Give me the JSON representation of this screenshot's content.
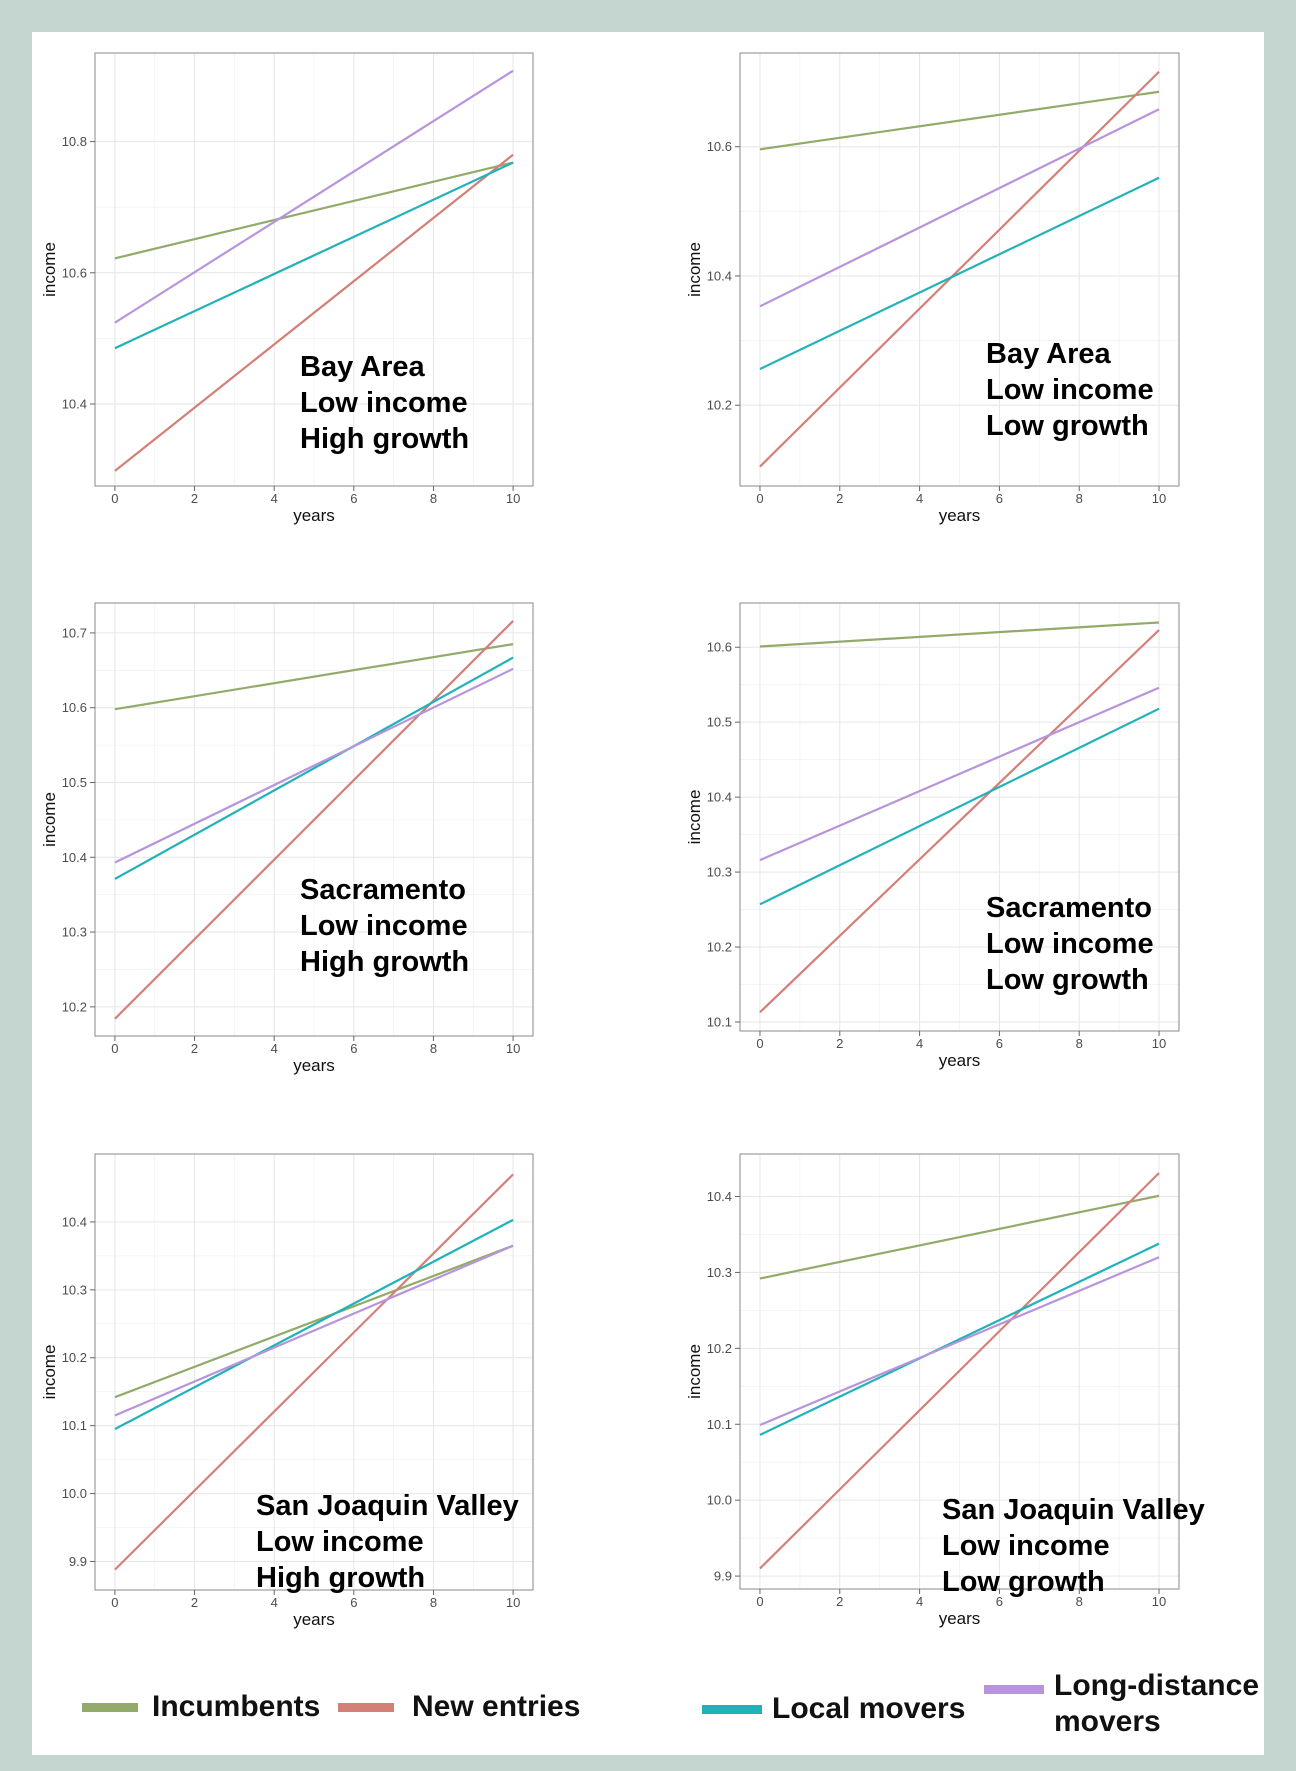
{
  "colors": {
    "incumbents": "#93ab6a",
    "new_entries": "#d47f78",
    "local_movers": "#1fb2b8",
    "long_distance_movers": "#b794dc",
    "frame_bg": "#c5d5cf"
  },
  "legend": {
    "items": [
      {
        "key": "incumbents",
        "label": "Incumbents"
      },
      {
        "key": "new_entries",
        "label": "New entries"
      },
      {
        "key": "local_movers",
        "label": "Local movers"
      },
      {
        "key": "long_distance_movers",
        "label": "Long-distance movers",
        "label_lines": [
          "Long-distance",
          "movers"
        ]
      }
    ]
  },
  "chart_data": [
    {
      "type": "line",
      "xlabel": "years",
      "ylabel": "income",
      "annotation": [
        "Bay Area",
        "Low income",
        "High growth"
      ],
      "x": [
        0,
        10
      ],
      "xticks": [
        0,
        2,
        4,
        6,
        8,
        10
      ],
      "xlim": [
        -0.5,
        10.5
      ],
      "yticks": [
        10.4,
        10.6,
        10.8
      ],
      "ylim": [
        10.275,
        10.935
      ],
      "grid": true,
      "series": [
        {
          "name": "Incumbents",
          "key": "incumbents",
          "values": [
            10.622,
            10.768
          ]
        },
        {
          "name": "New entries",
          "key": "new_entries",
          "values": [
            10.298,
            10.78
          ]
        },
        {
          "name": "Local movers",
          "key": "local_movers",
          "values": [
            10.485,
            10.768
          ]
        },
        {
          "name": "Long-distance movers",
          "key": "long_distance_movers",
          "values": [
            10.524,
            10.908
          ]
        }
      ]
    },
    {
      "type": "line",
      "xlabel": "years",
      "ylabel": "income",
      "annotation": [
        "Bay Area",
        "Low income",
        "Low growth"
      ],
      "x": [
        0,
        10
      ],
      "xticks": [
        0,
        2,
        4,
        6,
        8,
        10
      ],
      "xlim": [
        -0.5,
        10.5
      ],
      "yticks": [
        10.2,
        10.4,
        10.6
      ],
      "ylim": [
        10.075,
        10.745
      ],
      "grid": true,
      "series": [
        {
          "name": "Incumbents",
          "key": "incumbents",
          "values": [
            10.596,
            10.685
          ]
        },
        {
          "name": "New entries",
          "key": "new_entries",
          "values": [
            10.105,
            10.716
          ]
        },
        {
          "name": "Local movers",
          "key": "local_movers",
          "values": [
            10.256,
            10.552
          ]
        },
        {
          "name": "Long-distance movers",
          "key": "long_distance_movers",
          "values": [
            10.353,
            10.658
          ]
        }
      ]
    },
    {
      "type": "line",
      "xlabel": "years",
      "ylabel": "income",
      "annotation": [
        "Sacramento",
        "Low income",
        "High growth"
      ],
      "x": [
        0,
        10
      ],
      "xticks": [
        0,
        2,
        4,
        6,
        8,
        10
      ],
      "xlim": [
        -0.5,
        10.5
      ],
      "yticks": [
        10.2,
        10.3,
        10.4,
        10.5,
        10.6,
        10.7
      ],
      "ylim": [
        10.161,
        10.74
      ],
      "grid": true,
      "series": [
        {
          "name": "Incumbents",
          "key": "incumbents",
          "values": [
            10.598,
            10.685
          ]
        },
        {
          "name": "New entries",
          "key": "new_entries",
          "values": [
            10.184,
            10.716
          ]
        },
        {
          "name": "Local movers",
          "key": "local_movers",
          "values": [
            10.371,
            10.667
          ]
        },
        {
          "name": "Long-distance movers",
          "key": "long_distance_movers",
          "values": [
            10.393,
            10.652
          ]
        }
      ]
    },
    {
      "type": "line",
      "xlabel": "years",
      "ylabel": "income",
      "annotation": [
        "Sacramento",
        "Low income",
        "Low growth"
      ],
      "x": [
        0,
        10
      ],
      "xticks": [
        0,
        2,
        4,
        6,
        8,
        10
      ],
      "xlim": [
        -0.5,
        10.5
      ],
      "yticks": [
        10.1,
        10.2,
        10.3,
        10.4,
        10.5,
        10.6
      ],
      "ylim": [
        10.088,
        10.659
      ],
      "grid": true,
      "series": [
        {
          "name": "Incumbents",
          "key": "incumbents",
          "values": [
            10.601,
            10.633
          ]
        },
        {
          "name": "New entries",
          "key": "new_entries",
          "values": [
            10.113,
            10.623
          ]
        },
        {
          "name": "Local movers",
          "key": "local_movers",
          "values": [
            10.257,
            10.518
          ]
        },
        {
          "name": "Long-distance movers",
          "key": "long_distance_movers",
          "values": [
            10.316,
            10.546
          ]
        }
      ]
    },
    {
      "type": "line",
      "xlabel": "years",
      "ylabel": "income",
      "annotation": [
        "San Joaquin Valley",
        "Low income",
        "High growth"
      ],
      "x": [
        0,
        10
      ],
      "xticks": [
        0,
        2,
        4,
        6,
        8,
        10
      ],
      "xlim": [
        -0.5,
        10.5
      ],
      "yticks": [
        9.9,
        10.0,
        10.1,
        10.2,
        10.3,
        10.4
      ],
      "ylim": [
        9.858,
        10.5
      ],
      "grid": true,
      "series": [
        {
          "name": "Incumbents",
          "key": "incumbents",
          "values": [
            10.142,
            10.365
          ]
        },
        {
          "name": "New entries",
          "key": "new_entries",
          "values": [
            9.888,
            10.47
          ]
        },
        {
          "name": "Local movers",
          "key": "local_movers",
          "values": [
            10.095,
            10.403
          ]
        },
        {
          "name": "Long-distance movers",
          "key": "long_distance_movers",
          "values": [
            10.115,
            10.365
          ]
        }
      ]
    },
    {
      "type": "line",
      "xlabel": "years",
      "ylabel": "income",
      "annotation": [
        "San Joaquin Valley",
        "Low income",
        "Low growth"
      ],
      "x": [
        0,
        10
      ],
      "xticks": [
        0,
        2,
        4,
        6,
        8,
        10
      ],
      "xlim": [
        -0.5,
        10.5
      ],
      "yticks": [
        9.9,
        10.0,
        10.1,
        10.2,
        10.3,
        10.4
      ],
      "ylim": [
        9.883,
        10.456
      ],
      "grid": true,
      "series": [
        {
          "name": "Incumbents",
          "key": "incumbents",
          "values": [
            10.292,
            10.401
          ]
        },
        {
          "name": "New entries",
          "key": "new_entries",
          "values": [
            9.91,
            10.431
          ]
        },
        {
          "name": "Local movers",
          "key": "local_movers",
          "values": [
            10.086,
            10.338
          ]
        },
        {
          "name": "Long-distance movers",
          "key": "long_distance_movers",
          "values": [
            10.099,
            10.32
          ]
        }
      ]
    }
  ]
}
